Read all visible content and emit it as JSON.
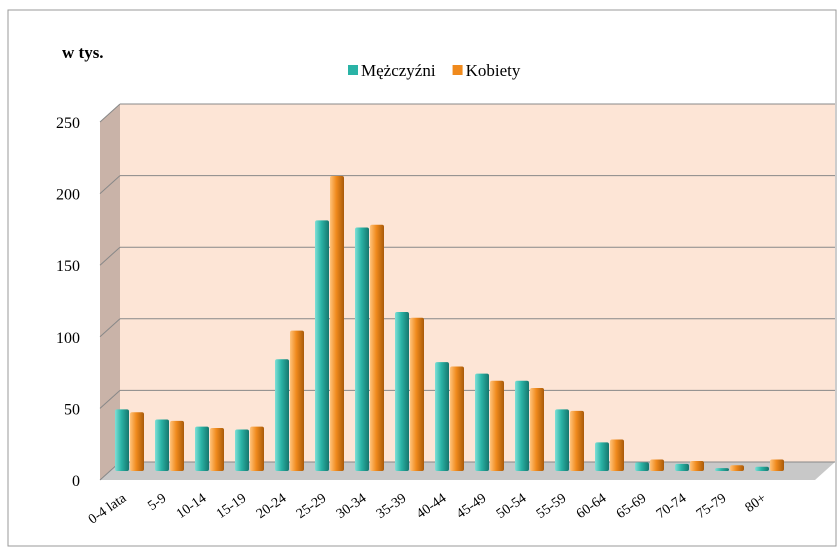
{
  "chart_data": {
    "type": "bar",
    "unit_label": "w tys.",
    "categories": [
      "0-4 lata",
      "5-9",
      "10-14",
      "15-19",
      "20-24",
      "25-29",
      "30-34",
      "35-39",
      "40-44",
      "45-49",
      "50-54",
      "55-59",
      "60-64",
      "65-69",
      "70-74",
      "75-79",
      "80+"
    ],
    "series": [
      {
        "name": "Mężczyźni",
        "color": "#2ab3a6",
        "values": [
          43,
          36,
          31,
          29,
          78,
          175,
          170,
          111,
          76,
          68,
          63,
          43,
          20,
          6,
          5,
          2,
          3
        ]
      },
      {
        "name": "Kobiety",
        "color": "#f08a1c",
        "values": [
          41,
          35,
          30,
          31,
          98,
          206,
          172,
          107,
          73,
          63,
          58,
          42,
          22,
          8,
          7,
          4,
          8
        ]
      }
    ],
    "ylim": [
      0,
      250
    ],
    "yticks": [
      0,
      50,
      100,
      150,
      200,
      250
    ],
    "grid": true,
    "legend": "top"
  }
}
